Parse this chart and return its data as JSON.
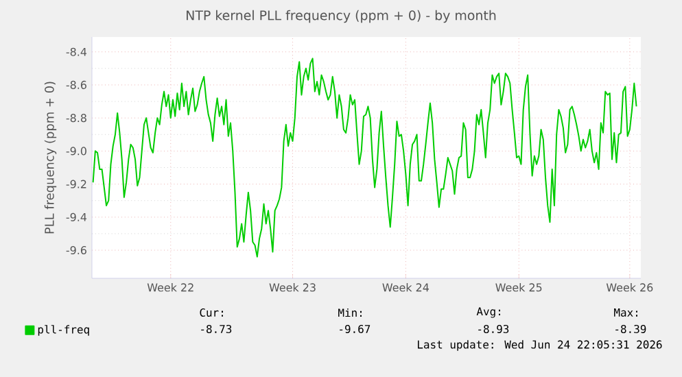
{
  "chart_data": {
    "type": "line",
    "title": "NTP kernel PLL frequency (ppm + 0) - by month",
    "ylabel": "PLL frequency (ppm + 0)",
    "categories": [
      null,
      null,
      null,
      null,
      null,
      null,
      null,
      null,
      null,
      null,
      null,
      null,
      null,
      null,
      null,
      null,
      null,
      null,
      null,
      null,
      null,
      null,
      null,
      null,
      null,
      null,
      null,
      null,
      null,
      null,
      null,
      null,
      null,
      null,
      null,
      "Week 22",
      null,
      null,
      null,
      null,
      null,
      null,
      null,
      null,
      null,
      null,
      null,
      null,
      null,
      null,
      null,
      null,
      null,
      null,
      null,
      null,
      null,
      null,
      null,
      null,
      null,
      null,
      null,
      null,
      null,
      null,
      null,
      null,
      null,
      null,
      null,
      null,
      null,
      null,
      null,
      null,
      null,
      null,
      null,
      null,
      null,
      null,
      null,
      null,
      null,
      null,
      null,
      null,
      null,
      null,
      "Week 23",
      null,
      null,
      null,
      null,
      null,
      null,
      null,
      null,
      null,
      null,
      null,
      null,
      null,
      null,
      null,
      null,
      null,
      null,
      null,
      null,
      null,
      null,
      null,
      null,
      null,
      null,
      null,
      null,
      null,
      null,
      null,
      null,
      null,
      null,
      null,
      null,
      null,
      null,
      null,
      null,
      null,
      null,
      null,
      null,
      null,
      null,
      null,
      null,
      null,
      null,
      "Week 24",
      null,
      null,
      null,
      null,
      null,
      null,
      null,
      null,
      null,
      null,
      null,
      null,
      null,
      null,
      null,
      null,
      null,
      null,
      null,
      null,
      null,
      null,
      null,
      null,
      null,
      null,
      null,
      null,
      null,
      null,
      null,
      null,
      null,
      null,
      null,
      null,
      null,
      null,
      null,
      null,
      null,
      null,
      null,
      null,
      null,
      null,
      null,
      null,
      null,
      null,
      "Week 25",
      null,
      null,
      null,
      null,
      null,
      null,
      null,
      null,
      null,
      null,
      null,
      null,
      null,
      null,
      null,
      null,
      null,
      null,
      null,
      null,
      null,
      null,
      null,
      null,
      null,
      null,
      null,
      null,
      null,
      null,
      null,
      null,
      null,
      null,
      null,
      null,
      null,
      null,
      null,
      null,
      null,
      null,
      null,
      null,
      null,
      null,
      null,
      null,
      null,
      "Week 26",
      null,
      null,
      null
    ],
    "series": [
      {
        "name": "pll-freq",
        "color": "#00cc00",
        "values": [
          -9.19,
          -9.0,
          -9.01,
          -9.11,
          -9.11,
          -9.22,
          -9.33,
          -9.3,
          -9.08,
          -8.97,
          -8.9,
          -8.77,
          -8.89,
          -9.05,
          -9.28,
          -9.19,
          -9.05,
          -8.96,
          -8.98,
          -9.05,
          -9.21,
          -9.16,
          -9.0,
          -8.84,
          -8.8,
          -8.89,
          -8.98,
          -9.01,
          -8.89,
          -8.8,
          -8.84,
          -8.72,
          -8.64,
          -8.73,
          -8.66,
          -8.8,
          -8.69,
          -8.79,
          -8.65,
          -8.75,
          -8.59,
          -8.73,
          -8.64,
          -8.78,
          -8.69,
          -8.62,
          -8.76,
          -8.72,
          -8.64,
          -8.59,
          -8.55,
          -8.69,
          -8.78,
          -8.83,
          -8.94,
          -8.78,
          -8.68,
          -8.79,
          -8.73,
          -8.84,
          -8.69,
          -8.91,
          -8.83,
          -9.0,
          -9.25,
          -9.58,
          -9.53,
          -9.44,
          -9.55,
          -9.39,
          -9.25,
          -9.36,
          -9.55,
          -9.57,
          -9.64,
          -9.53,
          -9.47,
          -9.32,
          -9.44,
          -9.36,
          -9.47,
          -9.61,
          -9.36,
          -9.33,
          -9.29,
          -9.22,
          -8.94,
          -8.84,
          -8.97,
          -8.89,
          -8.94,
          -8.8,
          -8.55,
          -8.46,
          -8.66,
          -8.55,
          -8.5,
          -8.57,
          -8.47,
          -8.44,
          -8.64,
          -8.58,
          -8.66,
          -8.54,
          -8.58,
          -8.64,
          -8.69,
          -8.66,
          -8.55,
          -8.64,
          -8.8,
          -8.66,
          -8.73,
          -8.87,
          -8.89,
          -8.8,
          -8.66,
          -8.72,
          -8.69,
          -8.89,
          -9.08,
          -9.0,
          -8.79,
          -8.78,
          -8.73,
          -8.8,
          -9.05,
          -9.22,
          -9.11,
          -8.89,
          -8.76,
          -8.97,
          -9.16,
          -9.33,
          -9.46,
          -9.28,
          -9.08,
          -8.82,
          -8.91,
          -8.9,
          -9.0,
          -9.14,
          -9.33,
          -9.08,
          -8.96,
          -8.94,
          -8.9,
          -9.18,
          -9.18,
          -9.08,
          -8.96,
          -8.83,
          -8.71,
          -8.83,
          -9.05,
          -9.19,
          -9.34,
          -9.23,
          -9.23,
          -9.14,
          -9.04,
          -9.08,
          -9.12,
          -9.26,
          -9.11,
          -9.04,
          -9.03,
          -8.83,
          -8.87,
          -9.16,
          -9.16,
          -9.11,
          -9.0,
          -8.78,
          -8.84,
          -8.75,
          -8.89,
          -9.04,
          -8.83,
          -8.75,
          -8.54,
          -8.59,
          -8.55,
          -8.53,
          -8.72,
          -8.64,
          -8.53,
          -8.55,
          -8.59,
          -8.75,
          -8.89,
          -9.04,
          -9.03,
          -9.08,
          -8.75,
          -8.61,
          -8.54,
          -8.89,
          -9.15,
          -9.03,
          -9.08,
          -9.03,
          -8.87,
          -8.93,
          -9.16,
          -9.33,
          -9.43,
          -9.11,
          -9.33,
          -8.9,
          -8.75,
          -8.79,
          -8.86,
          -9.01,
          -8.96,
          -8.75,
          -8.73,
          -8.78,
          -8.84,
          -8.91,
          -9.0,
          -8.93,
          -8.98,
          -8.94,
          -8.87,
          -9.0,
          -9.07,
          -9.01,
          -9.11,
          -8.83,
          -8.89,
          -8.64,
          -8.66,
          -8.65,
          -9.05,
          -8.89,
          -9.07,
          -8.9,
          -8.89,
          -8.64,
          -8.61,
          -8.91,
          -8.87,
          -8.75,
          -8.59,
          -8.73
        ]
      }
    ],
    "ylim": [
      -9.77,
      -8.31
    ],
    "yticks": [
      {
        "value": -9.6,
        "label": "-9.6"
      },
      {
        "value": -9.4,
        "label": "-9.4"
      },
      {
        "value": -9.2,
        "label": "-9.2"
      },
      {
        "value": -9.0,
        "label": "-9.0"
      },
      {
        "value": -8.8,
        "label": "-8.8"
      },
      {
        "value": -8.6,
        "label": "-8.6"
      },
      {
        "value": -8.4,
        "label": "-8.4"
      }
    ],
    "grid": true,
    "legend": "bottom left",
    "marker": "none",
    "line_style": "solid",
    "annotations": [
      "Cur:",
      "-8.73",
      "Min:",
      "-9.67",
      "Avg:",
      "-8.93",
      "Max:",
      "-8.39",
      "Last update: Wed Jun 24 22:05:31 2026"
    ]
  }
}
